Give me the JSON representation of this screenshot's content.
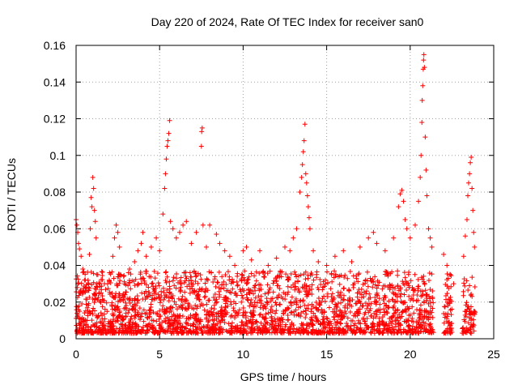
{
  "chart_data": {
    "type": "scatter",
    "title": "Day 220 of 2024, Rate Of TEC Index for receiver san0",
    "xlabel": "GPS time / hours",
    "ylabel": "ROTI / TECUs",
    "xlim": [
      0,
      25
    ],
    "ylim": [
      0,
      0.16
    ],
    "x_ticks": [
      "0",
      "5",
      "10",
      "15",
      "20",
      "25"
    ],
    "y_ticks": [
      "0",
      "0.02",
      "0.04",
      "0.06",
      "0.08",
      "0.1",
      "0.12",
      "0.14",
      "0.16"
    ],
    "grid": true,
    "marker": "plus",
    "color": "#ff0000",
    "series": [
      {
        "points": [
          [
            0.0,
            0.065
          ],
          [
            0.05,
            0.062
          ],
          [
            0.1,
            0.058
          ],
          [
            0.15,
            0.052
          ],
          [
            0.2,
            0.049
          ],
          [
            0.3,
            0.045
          ],
          [
            0.4,
            0.038
          ],
          [
            0.5,
            0.032
          ],
          [
            0.6,
            0.028
          ],
          [
            0.8,
            0.046
          ],
          [
            0.85,
            0.06
          ],
          [
            0.9,
            0.077
          ],
          [
            0.95,
            0.072
          ],
          [
            1.0,
            0.088
          ],
          [
            1.05,
            0.082
          ],
          [
            1.1,
            0.07
          ],
          [
            1.15,
            0.064
          ],
          [
            1.2,
            0.055
          ],
          [
            1.3,
            0.035
          ],
          [
            1.5,
            0.025
          ],
          [
            1.7,
            0.03
          ],
          [
            2.0,
            0.036
          ],
          [
            2.2,
            0.045
          ],
          [
            2.3,
            0.055
          ],
          [
            2.4,
            0.062
          ],
          [
            2.5,
            0.058
          ],
          [
            2.6,
            0.05
          ],
          [
            2.9,
            0.03
          ],
          [
            3.2,
            0.038
          ],
          [
            3.5,
            0.042
          ],
          [
            3.7,
            0.048
          ],
          [
            3.9,
            0.052
          ],
          [
            4.0,
            0.058
          ],
          [
            4.2,
            0.045
          ],
          [
            4.5,
            0.05
          ],
          [
            4.8,
            0.055
          ],
          [
            5.0,
            0.048
          ],
          [
            5.2,
            0.068
          ],
          [
            5.3,
            0.082
          ],
          [
            5.35,
            0.09
          ],
          [
            5.4,
            0.098
          ],
          [
            5.45,
            0.105
          ],
          [
            5.5,
            0.108
          ],
          [
            5.55,
            0.112
          ],
          [
            5.6,
            0.119
          ],
          [
            5.65,
            0.064
          ],
          [
            5.8,
            0.06
          ],
          [
            6.0,
            0.055
          ],
          [
            6.2,
            0.058
          ],
          [
            6.4,
            0.062
          ],
          [
            6.6,
            0.064
          ],
          [
            6.9,
            0.052
          ],
          [
            7.2,
            0.058
          ],
          [
            7.5,
            0.105
          ],
          [
            7.52,
            0.113
          ],
          [
            7.55,
            0.115
          ],
          [
            7.6,
            0.062
          ],
          [
            7.8,
            0.05
          ],
          [
            8.0,
            0.062
          ],
          [
            8.4,
            0.057
          ],
          [
            8.6,
            0.052
          ],
          [
            8.9,
            0.048
          ],
          [
            9.2,
            0.045
          ],
          [
            9.5,
            0.04
          ],
          [
            10.0,
            0.048
          ],
          [
            10.2,
            0.05
          ],
          [
            10.5,
            0.043
          ],
          [
            11.0,
            0.048
          ],
          [
            11.5,
            0.04
          ],
          [
            12.0,
            0.044
          ],
          [
            12.5,
            0.05
          ],
          [
            12.8,
            0.048
          ],
          [
            13.0,
            0.055
          ],
          [
            13.2,
            0.06
          ],
          [
            13.4,
            0.08
          ],
          [
            13.5,
            0.088
          ],
          [
            13.55,
            0.095
          ],
          [
            13.6,
            0.102
          ],
          [
            13.65,
            0.108
          ],
          [
            13.7,
            0.117
          ],
          [
            13.75,
            0.09
          ],
          [
            13.8,
            0.085
          ],
          [
            13.85,
            0.078
          ],
          [
            13.9,
            0.072
          ],
          [
            13.95,
            0.066
          ],
          [
            14.0,
            0.06
          ],
          [
            14.2,
            0.048
          ],
          [
            14.5,
            0.042
          ],
          [
            15.0,
            0.04
          ],
          [
            15.5,
            0.045
          ],
          [
            16.0,
            0.048
          ],
          [
            16.5,
            0.042
          ],
          [
            17.0,
            0.05
          ],
          [
            17.5,
            0.055
          ],
          [
            17.8,
            0.058
          ],
          [
            18.0,
            0.052
          ],
          [
            18.5,
            0.048
          ],
          [
            19.0,
            0.055
          ],
          [
            19.3,
            0.072
          ],
          [
            19.4,
            0.079
          ],
          [
            19.5,
            0.081
          ],
          [
            19.6,
            0.075
          ],
          [
            19.7,
            0.065
          ],
          [
            19.8,
            0.06
          ],
          [
            20.0,
            0.055
          ],
          [
            20.3,
            0.062
          ],
          [
            20.5,
            0.075
          ],
          [
            20.6,
            0.088
          ],
          [
            20.65,
            0.1
          ],
          [
            20.7,
            0.118
          ],
          [
            20.72,
            0.13
          ],
          [
            20.75,
            0.138
          ],
          [
            20.78,
            0.147
          ],
          [
            20.8,
            0.152
          ],
          [
            20.82,
            0.155
          ],
          [
            20.85,
            0.148
          ],
          [
            20.9,
            0.11
          ],
          [
            20.95,
            0.092
          ],
          [
            21.0,
            0.078
          ],
          [
            21.1,
            0.06
          ],
          [
            21.2,
            0.055
          ],
          [
            21.3,
            0.05
          ],
          [
            22.0,
            0.046
          ],
          [
            22.2,
            0.04
          ],
          [
            22.4,
            0.035
          ],
          [
            22.6,
            0.03
          ],
          [
            23.2,
            0.045
          ],
          [
            23.3,
            0.056
          ],
          [
            23.4,
            0.065
          ],
          [
            23.45,
            0.078
          ],
          [
            23.5,
            0.085
          ],
          [
            23.55,
            0.09
          ],
          [
            23.6,
            0.096
          ],
          [
            23.65,
            0.099
          ],
          [
            23.7,
            0.082
          ],
          [
            23.75,
            0.07
          ],
          [
            23.8,
            0.058
          ],
          [
            23.85,
            0.05
          ]
        ]
      }
    ]
  }
}
